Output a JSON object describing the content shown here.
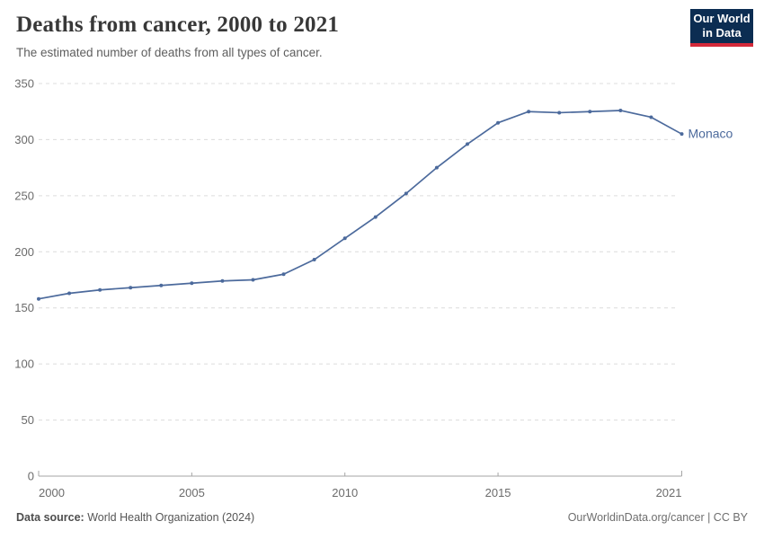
{
  "header": {
    "title": "Deaths from cancer, 2000 to 2021",
    "subtitle": "The estimated number of deaths from all types of cancer.",
    "logo": {
      "line1": "Our World",
      "line2": "in Data"
    }
  },
  "footer": {
    "datasource_label": "Data source:",
    "datasource_value": " World Health Organization (2024)",
    "link": "OurWorldinData.org/cancer | CC BY"
  },
  "colors": {
    "series_blue": "#4c6a9c",
    "gridline": "#dcdcdc",
    "axis": "#a5a5a5",
    "tick_label": "#6b6b6b",
    "logo_bg": "#0c2d52",
    "logo_red": "#d4293a"
  },
  "chart_data": {
    "type": "line",
    "title": "Deaths from cancer, 2000 to 2021",
    "xlabel": "",
    "ylabel": "",
    "ylim": [
      0,
      350
    ],
    "y_ticks": [
      0,
      50,
      100,
      150,
      200,
      250,
      300,
      350
    ],
    "x_ticks": [
      2000,
      2005,
      2010,
      2015,
      2021
    ],
    "grid": "horizontal-dashed",
    "legend_position": "end-of-line-label",
    "x": [
      2000,
      2001,
      2002,
      2003,
      2004,
      2005,
      2006,
      2007,
      2008,
      2009,
      2010,
      2011,
      2012,
      2013,
      2014,
      2015,
      2016,
      2017,
      2018,
      2019,
      2020,
      2021
    ],
    "series": [
      {
        "name": "Monaco",
        "color": "#4c6a9c",
        "values": [
          158,
          163,
          166,
          168,
          170,
          172,
          174,
          175,
          180,
          193,
          212,
          231,
          252,
          275,
          296,
          315,
          325,
          324,
          325,
          326,
          320,
          305
        ]
      }
    ]
  }
}
